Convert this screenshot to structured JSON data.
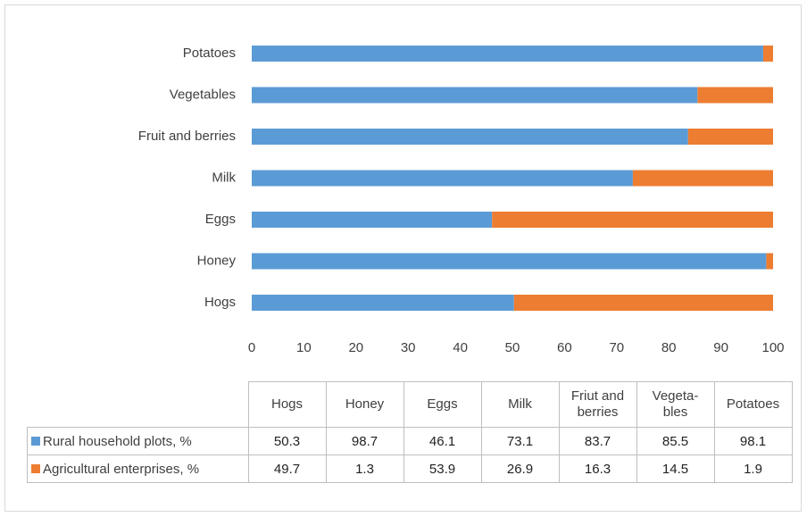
{
  "chart_data": {
    "type": "stacked_barh",
    "categories": [
      "Hogs",
      "Honey",
      "Eggs",
      "Milk",
      "Fruit and berries",
      "Vegetables",
      "Potatoes"
    ],
    "table_headers": [
      "Hogs",
      "Honey",
      "Eggs",
      "Milk",
      "Friut and berries",
      "Vegeta-bles",
      "Potatoes"
    ],
    "series": [
      {
        "name": "Rural household plots, %",
        "color": "#5b9bd5",
        "values": [
          50.3,
          98.7,
          46.1,
          73.1,
          83.7,
          85.5,
          98.1
        ]
      },
      {
        "name": "Agricultural enterprises, %",
        "color": "#ed7d31",
        "values": [
          49.7,
          1.3,
          53.9,
          26.9,
          16.3,
          14.5,
          1.9
        ]
      }
    ],
    "xlim": [
      0,
      100
    ],
    "xticks": [
      0,
      10,
      20,
      30,
      40,
      50,
      60,
      70,
      80,
      90,
      100
    ],
    "grid": false
  }
}
